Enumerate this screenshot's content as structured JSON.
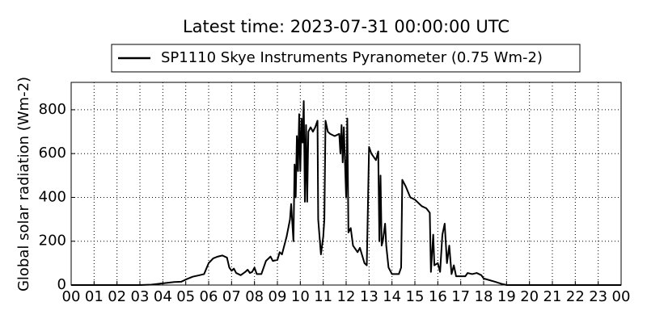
{
  "chart_data": {
    "type": "line",
    "title": "Latest time: 2023-07-31 00:00:00 UTC",
    "ylabel": "Global solar radiation (Wm-2)",
    "legend": "top",
    "grid": true,
    "xlim": [
      0,
      24
    ],
    "ylim": [
      0,
      925
    ],
    "xticks": [
      {
        "value": 0,
        "label": "00"
      },
      {
        "value": 1,
        "label": "01"
      },
      {
        "value": 2,
        "label": "02"
      },
      {
        "value": 3,
        "label": "03"
      },
      {
        "value": 4,
        "label": "04"
      },
      {
        "value": 5,
        "label": "05"
      },
      {
        "value": 6,
        "label": "06"
      },
      {
        "value": 7,
        "label": "07"
      },
      {
        "value": 8,
        "label": "08"
      },
      {
        "value": 9,
        "label": "09"
      },
      10,
      11,
      12,
      13,
      14,
      15,
      16,
      17,
      18,
      19,
      20,
      21,
      22,
      23,
      {
        "value": 24,
        "label": "00"
      }
    ],
    "yticks": [
      0,
      200,
      400,
      600,
      800
    ],
    "x": [
      0,
      3,
      3.5,
      4,
      4.5,
      4.8,
      5,
      5.3,
      5.6,
      5.8,
      6,
      6.2,
      6.4,
      6.6,
      6.8,
      6.9,
      7,
      7.1,
      7.2,
      7.4,
      7.6,
      7.7,
      7.8,
      7.9,
      8,
      8.1,
      8.3,
      8.5,
      8.7,
      8.8,
      9,
      9.1,
      9.2,
      9.4,
      9.55,
      9.6,
      9.7,
      9.75,
      9.8,
      9.85,
      9.9,
      9.95,
      10,
      10.05,
      10.1,
      10.15,
      10.2,
      10.25,
      10.3,
      10.35,
      10.45,
      10.55,
      10.65,
      10.75,
      10.78,
      10.9,
      11,
      11.05,
      11.1,
      11.2,
      11.3,
      11.5,
      11.7,
      11.75,
      11.8,
      11.85,
      11.9,
      12,
      12.05,
      12.1,
      12.2,
      12.3,
      12.5,
      12.6,
      12.8,
      12.9,
      13,
      13.1,
      13.3,
      13.4,
      13.45,
      13.5,
      13.55,
      13.6,
      13.7,
      13.75,
      13.85,
      14,
      14.3,
      14.4,
      14.45,
      14.6,
      14.8,
      15,
      15.3,
      15.5,
      15.65,
      15.7,
      15.8,
      15.85,
      16,
      16.1,
      16.2,
      16.3,
      16.4,
      16.5,
      16.6,
      16.7,
      16.8,
      17,
      17.2,
      17.3,
      17.5,
      17.7,
      17.9,
      18,
      18.5,
      18.8,
      19,
      24
    ],
    "series": [
      {
        "name": "SP1110 Skye Instruments Pyranometer (0.75 Wm-2)",
        "color": "#000000",
        "values": [
          0,
          0,
          2,
          8,
          14,
          15,
          25,
          38,
          45,
          50,
          100,
          122,
          130,
          135,
          125,
          80,
          65,
          75,
          55,
          45,
          60,
          70,
          55,
          60,
          80,
          50,
          50,
          110,
          130,
          110,
          115,
          150,
          140,
          220,
          300,
          370,
          200,
          550,
          400,
          680,
          520,
          780,
          520,
          760,
          650,
          840,
          380,
          730,
          380,
          700,
          720,
          700,
          720,
          750,
          300,
          140,
          220,
          300,
          750,
          700,
          690,
          680,
          690,
          600,
          730,
          560,
          720,
          400,
          760,
          240,
          260,
          180,
          150,
          170,
          100,
          90,
          630,
          600,
          570,
          610,
          200,
          500,
          180,
          200,
          280,
          180,
          80,
          50,
          50,
          80,
          480,
          450,
          400,
          390,
          360,
          350,
          330,
          60,
          230,
          90,
          100,
          60,
          230,
          280,
          100,
          180,
          50,
          90,
          40,
          40,
          40,
          55,
          50,
          55,
          45,
          30,
          15,
          5,
          0,
          0
        ]
      }
    ]
  }
}
